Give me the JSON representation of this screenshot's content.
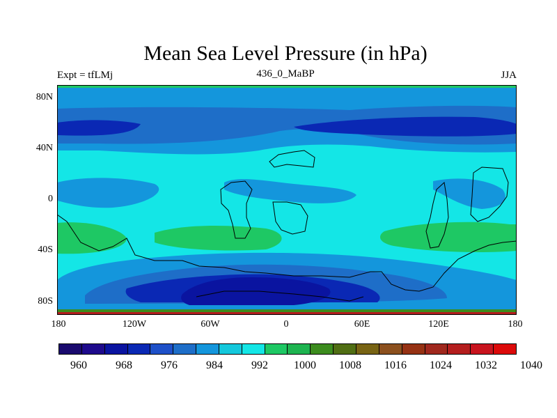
{
  "title": "Mean Sea Level Pressure (in hPa)",
  "expt_label": "Expt = tfLMj",
  "center_label": "436_0_MaBP",
  "season_label": "JJA",
  "y_axis": [
    "80N",
    "40N",
    "0",
    "40S",
    "80S"
  ],
  "x_axis": [
    "180",
    "120W",
    "60W",
    "0",
    "60E",
    "120E",
    "180"
  ],
  "colorbar": {
    "colors": [
      "#1a0a6e",
      "#1e0a8c",
      "#0a14a0",
      "#0a28b4",
      "#1e50c8",
      "#1e6ec8",
      "#1496dc",
      "#14c8dc",
      "#14e6e6",
      "#1ec864",
      "#1eb450",
      "#3c8c1e",
      "#506e14",
      "#786414",
      "#8c501e",
      "#963214",
      "#a0281e",
      "#b41e1e",
      "#c8141e",
      "#dc0a0a"
    ],
    "labels": [
      "960",
      "968",
      "976",
      "984",
      "992",
      "1000",
      "1008",
      "1016",
      "1024",
      "1032",
      "1040"
    ]
  }
}
